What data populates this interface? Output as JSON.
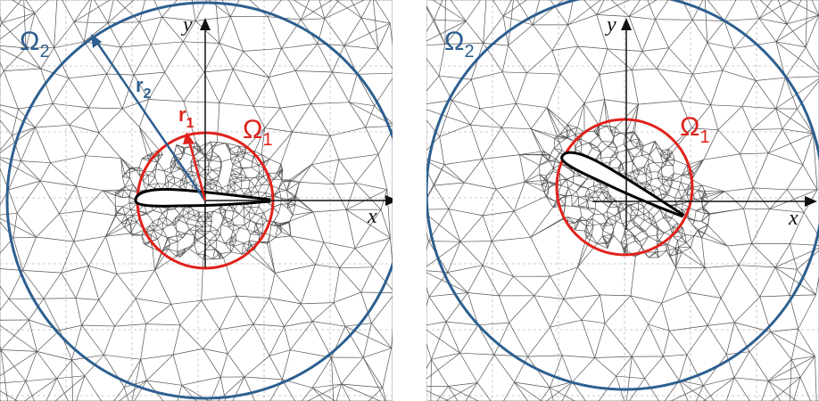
{
  "colors": {
    "outer_circle": "#2d5f8f",
    "inner_circle": "#e0221b",
    "mesh": "#555555",
    "grid": "#bdbdbd",
    "axis": "#111111"
  },
  "labels": {
    "x_axis": "x",
    "y_axis": "y",
    "omega_symbol": "Ω",
    "omega_outer_sub": "2",
    "omega_inner_sub": "1",
    "r_symbol": "r",
    "r_outer_sub": "2",
    "r_inner_sub": "1"
  },
  "panels": [
    {
      "id": "left",
      "airfoil_rotation_deg": 0,
      "show_radii": true
    },
    {
      "id": "right",
      "airfoil_rotation_deg": 26,
      "show_radii": false
    }
  ]
}
